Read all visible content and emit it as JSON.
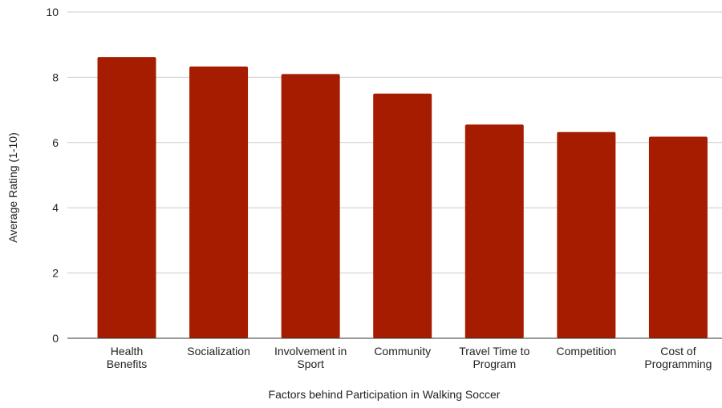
{
  "chart_data": {
    "type": "bar",
    "title": "",
    "xlabel": "Factors behind Participation in Walking Soccer",
    "ylabel": "Average Rating (1-10)",
    "categories": [
      [
        "Health",
        "Benefits"
      ],
      [
        "Socialization"
      ],
      [
        "Involvement in",
        "Sport"
      ],
      [
        "Community"
      ],
      [
        "Travel Time to",
        "Program"
      ],
      [
        "Competition"
      ],
      [
        "Cost of",
        "Programming"
      ]
    ],
    "values": [
      8.62,
      8.33,
      8.1,
      7.5,
      6.55,
      6.32,
      6.18
    ],
    "ylim": [
      0,
      10
    ],
    "yticks": [
      "0",
      "2",
      "4",
      "6",
      "8",
      "10"
    ],
    "grid": true,
    "legend": "none",
    "bar_color": "#a61c00",
    "grid_color": "#cccccc",
    "axis_color": "#333333",
    "text_color": "#222222"
  }
}
